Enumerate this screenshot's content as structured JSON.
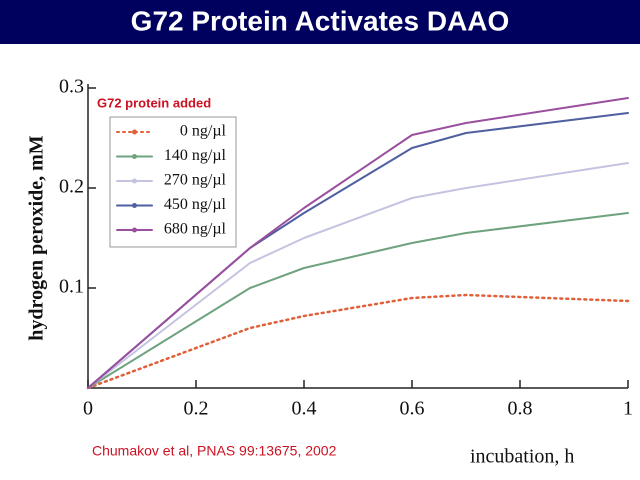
{
  "title": "G72 Protein Activates DAAO",
  "footnote": "Chumakov et al, PNAS 99:13675, 2002",
  "chart_data": {
    "type": "line",
    "legend_title": "G72 protein added",
    "xlabel": "incubation, h",
    "ylabel": "hydrogen peroxide, mM",
    "x": [
      0,
      0.3,
      0.4,
      0.6,
      0.7,
      1
    ],
    "series": [
      {
        "name": "0 ng/µl",
        "color": "#e0603a",
        "style": "dotted",
        "values": [
          0,
          0.06,
          0.072,
          0.09,
          0.093,
          0.087
        ]
      },
      {
        "name": "140 ng/µl",
        "color": "#6fa27f",
        "style": "solid",
        "values": [
          0,
          0.1,
          0.12,
          0.145,
          0.155,
          0.175
        ]
      },
      {
        "name": "270 ng/µl",
        "color": "#c4c4e2",
        "style": "solid",
        "values": [
          0,
          0.125,
          0.15,
          0.19,
          0.2,
          0.225
        ]
      },
      {
        "name": "450 ng/µl",
        "color": "#4f5fa0",
        "style": "solid",
        "values": [
          0,
          0.14,
          0.175,
          0.24,
          0.255,
          0.275
        ]
      },
      {
        "name": "680 ng/µl",
        "color": "#9a4f9e",
        "style": "solid",
        "values": [
          0,
          0.14,
          0.18,
          0.253,
          0.265,
          0.29
        ]
      }
    ],
    "xlim": [
      0,
      1
    ],
    "ylim": [
      0,
      0.3
    ],
    "xticks": [
      0,
      0.2,
      0.4,
      0.6,
      0.8,
      1
    ],
    "yticks": [
      0.1,
      0.2,
      0.3
    ]
  }
}
